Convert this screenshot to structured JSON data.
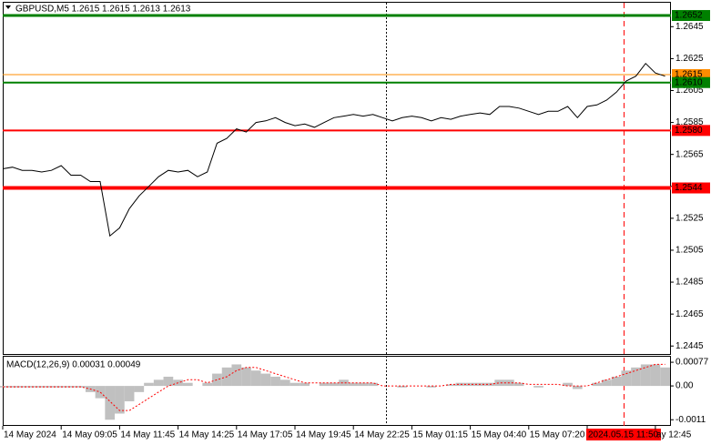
{
  "chart_data": [
    {
      "type": "line",
      "title": "GBPUSD,M5  1.2615 1.2615 1.2613 1.2613",
      "categories": [
        "14 May 2024",
        null,
        null,
        null,
        null,
        null,
        "14 May 09:05",
        null,
        null,
        null,
        null,
        null,
        "14 May 11:45",
        null,
        null,
        null,
        null,
        null,
        "14 May 14:25",
        null,
        null,
        null,
        null,
        null,
        "14 May 17:05",
        null,
        null,
        null,
        null,
        null,
        "14 May 19:45",
        null,
        null,
        null,
        null,
        null,
        "14 May 22:25",
        null,
        null,
        null,
        null,
        null,
        "15 May 01:15",
        null,
        null,
        null,
        null,
        null,
        "15 May 04:40",
        null,
        null,
        null,
        null,
        null,
        "15 May 07:20",
        null,
        null,
        null,
        null,
        null,
        "2024.05.15 11:50",
        null,
        null,
        null,
        null,
        null,
        null,
        "ay 12:45",
        null
      ],
      "color": "#000000",
      "values": [
        1.2556,
        1.2557,
        1.2555,
        1.2555,
        1.2554,
        1.2555,
        1.2558,
        1.2552,
        1.2552,
        1.2548,
        1.2548,
        1.2514,
        1.2519,
        1.2531,
        1.2539,
        1.2545,
        1.2551,
        1.2555,
        1.2554,
        1.2555,
        1.2551,
        1.2554,
        1.2572,
        1.2575,
        1.2581,
        1.2579,
        1.2585,
        1.2586,
        1.2588,
        1.2585,
        1.2583,
        1.2584,
        1.2582,
        1.2585,
        1.2588,
        1.2589,
        1.259,
        1.2589,
        1.259,
        1.2588,
        1.2586,
        1.2588,
        1.2589,
        1.2588,
        1.2586,
        1.2588,
        1.2587,
        1.2589,
        1.259,
        1.2591,
        1.259,
        1.2595,
        1.2595,
        1.2594,
        1.2592,
        1.259,
        1.2592,
        1.2592,
        1.2595,
        1.2588,
        1.2595,
        1.2596,
        1.2599,
        1.2604,
        1.2611,
        1.2614,
        1.2622,
        1.2616,
        1.2614
      ],
      "ylim": [
        1.244,
        1.266
      ],
      "yticks": [
        1.2645,
        1.2625,
        1.2605,
        1.2585,
        1.2565,
        1.2545,
        1.2525,
        1.2505,
        1.2485,
        1.2465,
        1.2445
      ],
      "levels": [
        {
          "value": 1.2652,
          "label": "1.2652",
          "color": "#008000"
        },
        {
          "value": 1.2615,
          "label": "1.2615",
          "color": "#ff8c00"
        },
        {
          "value": 1.261,
          "label": "1.2610",
          "color": "#008000"
        },
        {
          "value": 1.258,
          "label": "1.2580",
          "color": "#ff0000"
        },
        {
          "value": 1.2544,
          "label": "1.2544",
          "color": "#ff0000"
        }
      ]
    },
    {
      "type": "macd",
      "title": "MACD(12,26,9) 0.00031 0.00049",
      "series": [
        {
          "type": "bar",
          "color": "#c0c0c0",
          "values": [
            -5e-05,
            -5e-05,
            -5e-05,
            -5e-05,
            -5e-05,
            -5e-05,
            -5e-05,
            -5e-05,
            -5e-05,
            -0.0002,
            -0.0004,
            -0.0011,
            -0.0009,
            -0.0005,
            -0.0002,
            0.0001,
            0.0002,
            0.0003,
            0.0002,
            0.0001,
            0,
            0.0001,
            0.0004,
            0.0006,
            0.0007,
            0.0006,
            0.0005,
            0.0004,
            0.0003,
            0.0002,
            0.0001,
            0.0001,
            0,
            0.0001,
            0.0001,
            0.0002,
            0.0001,
            0.0001,
            0.0001,
            0,
            0,
            -5e-05,
            0,
            0,
            -5e-05,
            0,
            5e-05,
            0.0001,
            0.0001,
            0.0001,
            0.0001,
            0.0002,
            0.0002,
            0.0001,
            0,
            -5e-05,
            0,
            0,
            0.0001,
            -0.0001,
            0,
            0.0001,
            0.0002,
            0.0003,
            0.0005,
            0.0006,
            0.0007,
            0.0007,
            0.0006
          ]
        },
        {
          "type": "line",
          "color": "#ff0000",
          "values": [
            -3e-05,
            -3e-05,
            -3e-05,
            -3e-05,
            -3e-05,
            -3e-05,
            -3e-05,
            -3e-05,
            -3e-05,
            -0.0001,
            -0.0002,
            -0.0005,
            -0.0008,
            -0.0008,
            -0.0006,
            -0.0004,
            -0.0002,
            0,
            0.0001,
            0.0002,
            0.0002,
            0.0001,
            0.0002,
            0.0003,
            0.0005,
            0.0006,
            0.0006,
            0.0005,
            0.0004,
            0.0003,
            0.0002,
            0.0001,
            0.0001,
            0.0001,
            0.0001,
            0.0001,
            0.0001,
            0.0001,
            0.0001,
            0,
            0,
            0,
            0,
            0,
            0,
            0,
            5e-05,
            5e-05,
            5e-05,
            5e-05,
            5e-05,
            0.0001,
            0.0001,
            0.0001,
            5e-05,
            5e-05,
            5e-05,
            5e-05,
            0,
            0,
            0,
            0.0001,
            0.0002,
            0.0003,
            0.0004,
            0.0005,
            0.0006,
            0.0007,
            0.0007
          ]
        }
      ],
      "ylim": [
        -0.0013,
        0.00095
      ],
      "yticks": [
        0.00077,
        {
          "value": 0,
          "label": "0.00"
        },
        -0.0011
      ]
    }
  ]
}
